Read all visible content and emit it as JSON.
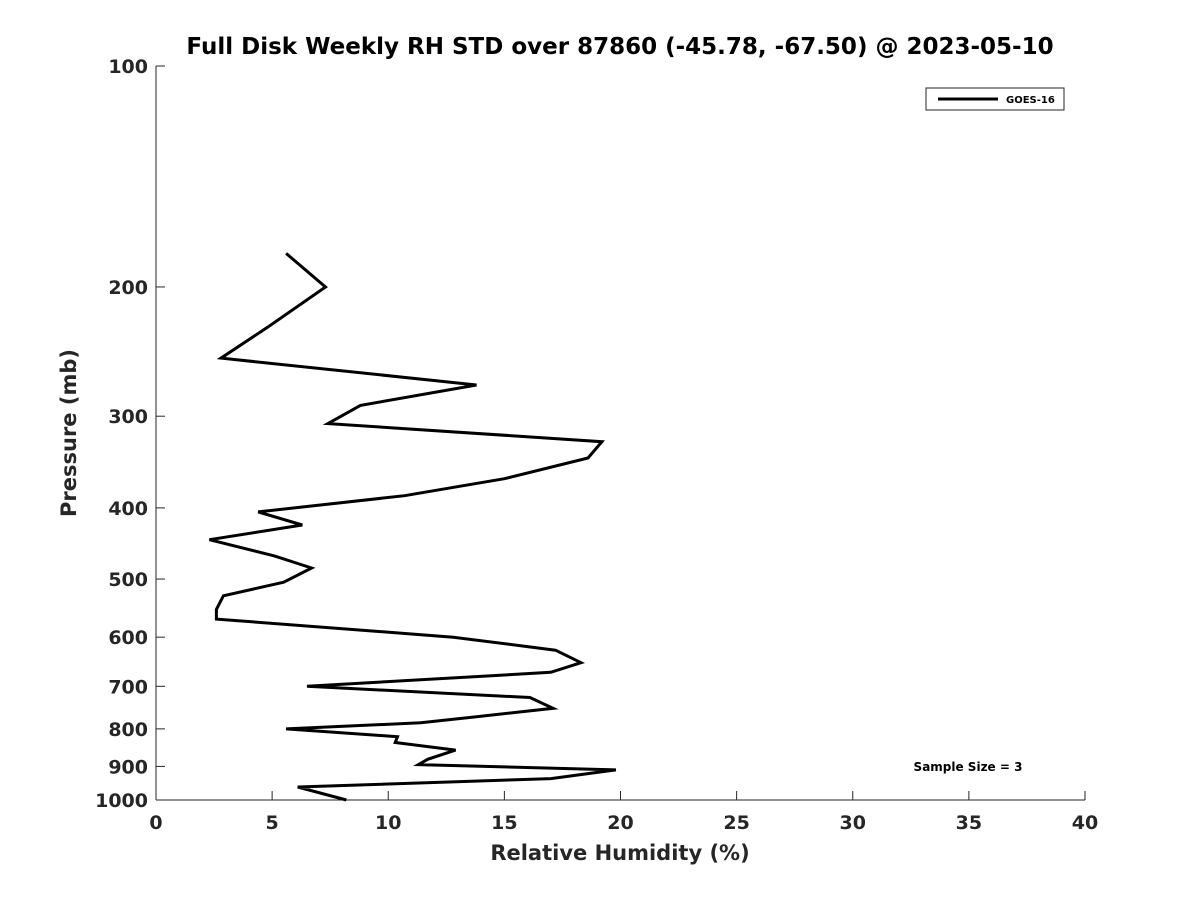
{
  "chart_data": {
    "type": "line",
    "title": "Full Disk Weekly RH STD over 87860 (-45.78, -67.50) @ 2023-05-10",
    "xlabel": "Relative Humidity (%)",
    "ylabel": "Pressure (mb)",
    "xlim": [
      0,
      40
    ],
    "ylim": [
      100,
      1000
    ],
    "yscale": "log",
    "reversed_y": true,
    "xticks": [
      "0",
      "5",
      "10",
      "15",
      "20",
      "25",
      "30",
      "35",
      "40"
    ],
    "yticks": [
      "100",
      "200",
      "300",
      "400",
      "500",
      "600",
      "700",
      "800",
      "900",
      "1000"
    ],
    "legend": {
      "entries": [
        "GOES-16"
      ],
      "location": "top-right"
    },
    "annotation": "Sample Size = 3",
    "series": [
      {
        "name": "GOES-16",
        "color": "#000000",
        "x": [
          5.6,
          7.3,
          4.8,
          2.8,
          13.8,
          8.8,
          7.4,
          19.2,
          18.6,
          15.0,
          10.7,
          4.4,
          6.3,
          2.3,
          5.1,
          6.7,
          5.5,
          2.9,
          2.6,
          2.6,
          12.8,
          17.2,
          18.3,
          17.0,
          6.5,
          16.1,
          17.1,
          13.8,
          11.4,
          5.6,
          10.4,
          10.3,
          12.9,
          11.7,
          11.3,
          19.8,
          17.0,
          6.1,
          8.2
        ],
        "y": [
          180,
          200,
          227,
          250,
          272,
          290,
          307,
          325,
          342,
          365,
          385,
          405,
          422,
          442,
          465,
          483,
          505,
          527,
          550,
          567,
          600,
          625,
          650,
          670,
          700,
          725,
          750,
          770,
          785,
          800,
          820,
          835,
          855,
          880,
          895,
          910,
          935,
          960,
          1000
        ]
      }
    ]
  }
}
